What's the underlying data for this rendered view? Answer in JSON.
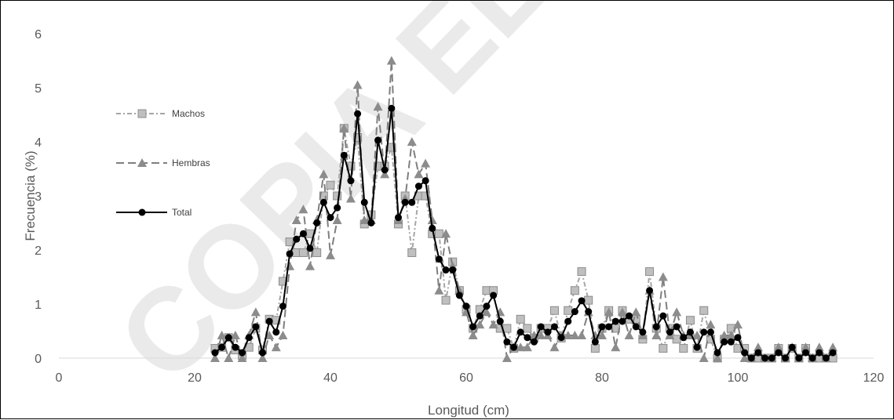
{
  "watermark": "COPIA ELECTRÓNICA",
  "chart_data": {
    "type": "line",
    "xlabel": "Longitud (cm)",
    "ylabel": "Frecuencia (%)",
    "xlim": [
      0,
      120
    ],
    "ylim": [
      0,
      6
    ],
    "xticks": [
      0,
      20,
      40,
      60,
      80,
      100,
      120
    ],
    "yticks": [
      0,
      1,
      2,
      3,
      4,
      5,
      6
    ],
    "grid": false,
    "legend_position": "left",
    "x": [
      23,
      24,
      25,
      26,
      27,
      28,
      29,
      30,
      31,
      32,
      33,
      34,
      35,
      36,
      37,
      38,
      39,
      40,
      41,
      42,
      43,
      44,
      45,
      46,
      47,
      48,
      49,
      50,
      51,
      52,
      53,
      54,
      55,
      56,
      57,
      58,
      59,
      60,
      61,
      62,
      63,
      64,
      65,
      66,
      67,
      68,
      69,
      70,
      71,
      72,
      73,
      74,
      75,
      76,
      77,
      78,
      79,
      80,
      81,
      82,
      83,
      84,
      85,
      86,
      87,
      88,
      89,
      90,
      91,
      92,
      93,
      94,
      95,
      96,
      97,
      98,
      99,
      100,
      101,
      102,
      103,
      104,
      105,
      106,
      107,
      108,
      109,
      110,
      111,
      112,
      113,
      114
    ],
    "series": [
      {
        "name": "Machos",
        "color": "#a6a6a6",
        "marker": "square",
        "dash": "6,3,2,3",
        "values": [
          0.18,
          0.2,
          0.38,
          0.15,
          0.05,
          0.2,
          0.55,
          0.15,
          0.72,
          0.7,
          1.42,
          2.15,
          1.95,
          1.95,
          2.3,
          1.95,
          3.0,
          3.2,
          3.0,
          4.25,
          3.55,
          4.08,
          2.48,
          2.65,
          3.55,
          3.55,
          3.9,
          2.48,
          3.0,
          1.95,
          3.0,
          3.0,
          2.3,
          2.3,
          1.07,
          1.78,
          1.25,
          0.9,
          0.55,
          0.9,
          1.25,
          1.25,
          0.55,
          0.55,
          0.18,
          0.72,
          0.55,
          0.37,
          0.55,
          0.55,
          0.88,
          0.37,
          0.88,
          1.25,
          1.6,
          1.07,
          0.18,
          0.55,
          0.88,
          0.55,
          0.88,
          0.72,
          0.72,
          0.35,
          1.6,
          0.55,
          0.18,
          0.55,
          0.35,
          0.18,
          0.7,
          0.18,
          0.88,
          0.35,
          0.0,
          0.35,
          0.55,
          0.18,
          0.18,
          0.0,
          0.0,
          0.0,
          0.0,
          0.18,
          0.0,
          0.18,
          0.0,
          0.18,
          0.0,
          0.0,
          0.0,
          0.0
        ]
      },
      {
        "name": "Hembras",
        "color": "#7f7f7f",
        "marker": "triangle",
        "dash": "10,5",
        "values": [
          0.0,
          0.42,
          0.0,
          0.42,
          0.0,
          0.42,
          0.85,
          0.0,
          0.42,
          0.2,
          0.42,
          1.7,
          2.55,
          2.75,
          1.7,
          2.55,
          3.4,
          1.9,
          2.55,
          4.25,
          2.95,
          5.05,
          2.55,
          2.55,
          4.65,
          3.4,
          5.5,
          2.55,
          2.95,
          4.0,
          3.4,
          3.6,
          2.55,
          1.25,
          2.3,
          1.7,
          1.25,
          0.85,
          0.42,
          0.62,
          0.85,
          0.62,
          0.85,
          0.0,
          0.2,
          0.2,
          0.2,
          0.42,
          0.42,
          0.42,
          0.2,
          0.42,
          0.42,
          0.42,
          0.42,
          0.85,
          0.42,
          0.42,
          0.85,
          0.2,
          0.85,
          0.42,
          0.85,
          0.42,
          1.25,
          0.42,
          1.5,
          0.42,
          0.85,
          0.42,
          0.42,
          0.42,
          0.0,
          0.62,
          0.0,
          0.42,
          0.42,
          0.62,
          0.0,
          0.0,
          0.2,
          0.0,
          0.0,
          0.2,
          0.0,
          0.2,
          0.0,
          0.2,
          0.0,
          0.2,
          0.0,
          0.2
        ]
      },
      {
        "name": "Total",
        "color": "#000000",
        "marker": "circle",
        "dash": "",
        "values": [
          0.1,
          0.2,
          0.38,
          0.2,
          0.1,
          0.38,
          0.58,
          0.1,
          0.68,
          0.48,
          0.96,
          1.93,
          2.2,
          2.3,
          2.03,
          2.5,
          2.88,
          2.6,
          2.78,
          3.75,
          3.28,
          4.52,
          2.88,
          2.5,
          4.03,
          3.48,
          4.62,
          2.6,
          2.88,
          2.88,
          3.18,
          3.28,
          2.4,
          1.83,
          1.63,
          1.63,
          1.16,
          0.96,
          0.58,
          0.78,
          0.96,
          1.16,
          0.68,
          0.3,
          0.2,
          0.48,
          0.38,
          0.3,
          0.58,
          0.48,
          0.58,
          0.38,
          0.68,
          0.86,
          1.06,
          0.86,
          0.3,
          0.58,
          0.58,
          0.68,
          0.68,
          0.78,
          0.58,
          0.48,
          1.25,
          0.58,
          0.78,
          0.48,
          0.58,
          0.38,
          0.48,
          0.2,
          0.48,
          0.48,
          0.1,
          0.3,
          0.3,
          0.38,
          0.1,
          0.0,
          0.1,
          0.0,
          0.0,
          0.1,
          0.0,
          0.2,
          0.0,
          0.1,
          0.0,
          0.1,
          0.0,
          0.1
        ]
      }
    ]
  }
}
